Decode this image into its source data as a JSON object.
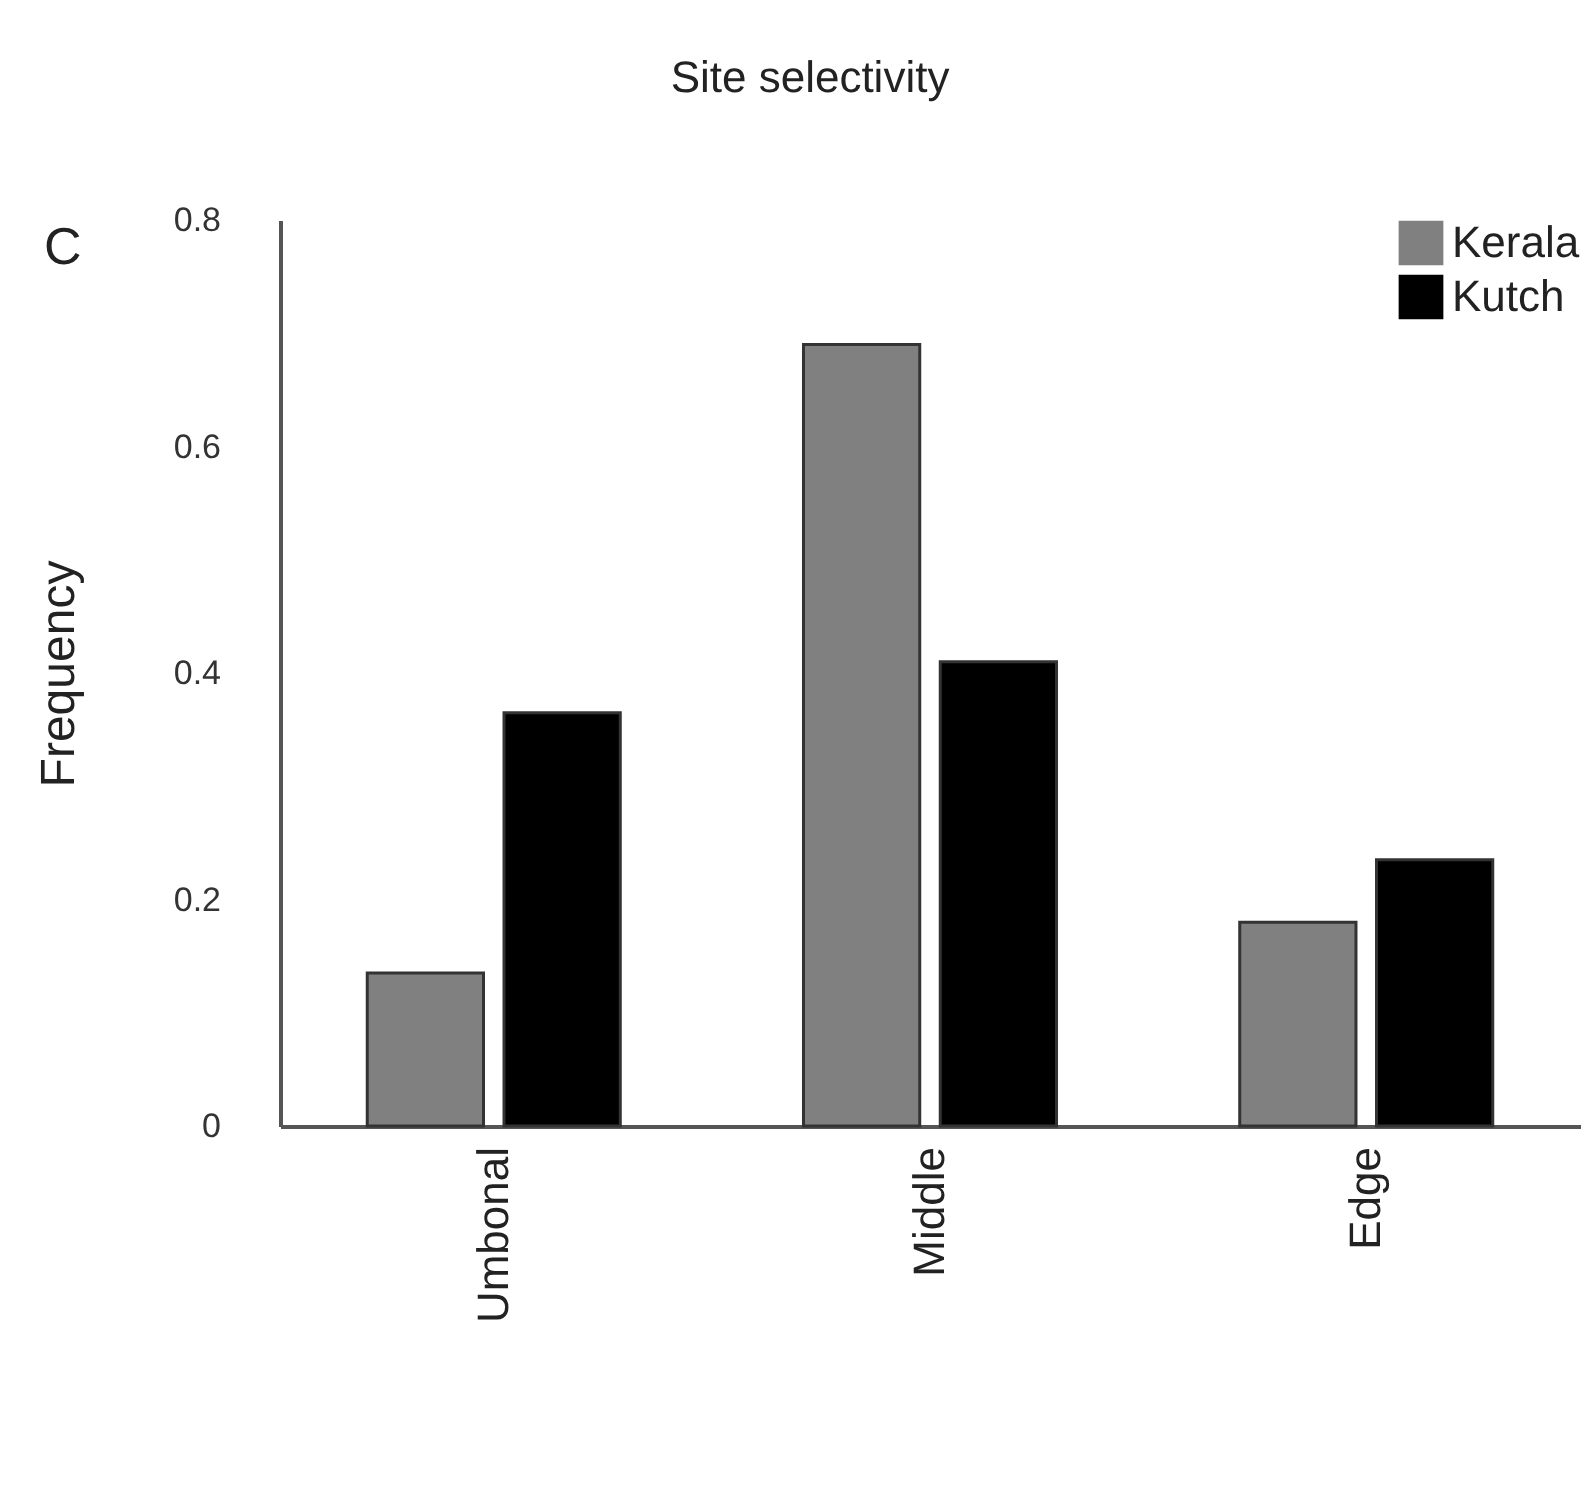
{
  "chart_data": {
    "type": "bar",
    "title": "Site selectivity",
    "ylabel": "Frequency",
    "annotations": [
      "C"
    ],
    "categories": [
      "Umbonal",
      "Middle",
      "Edge"
    ],
    "series": [
      {
        "name": "Kerala",
        "color": "#808080",
        "values": [
          0.135,
          0.69,
          0.18
        ]
      },
      {
        "name": "Kutch",
        "color": "#000000",
        "values": [
          0.365,
          0.41,
          0.235
        ]
      }
    ],
    "ylim": [
      0,
      0.8
    ],
    "yticks": [
      0,
      0.2,
      0.4,
      0.6,
      0.8
    ],
    "grid": false,
    "legend": "top right"
  }
}
